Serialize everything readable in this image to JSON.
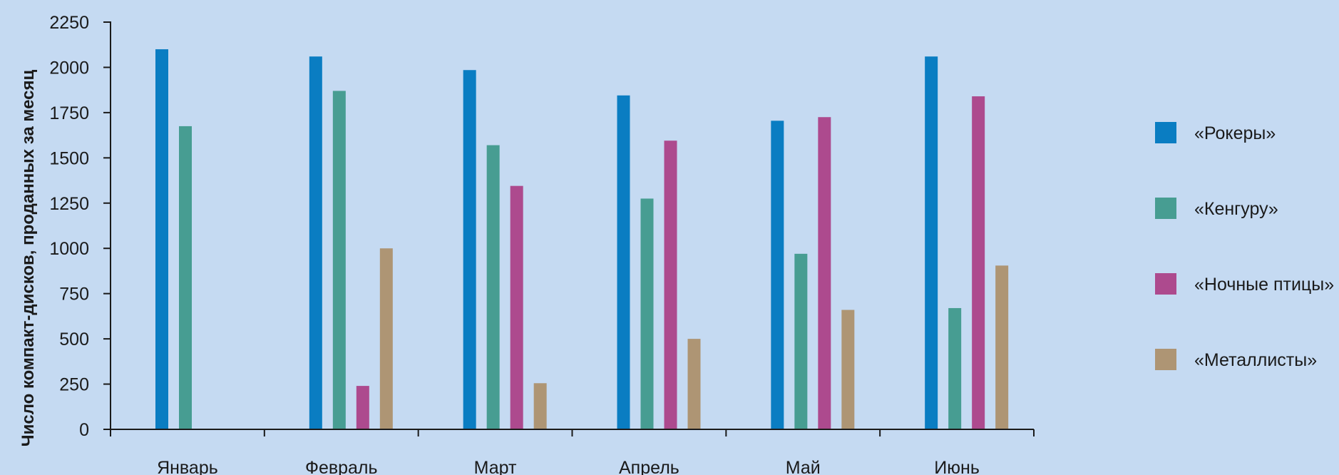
{
  "chart_data": {
    "type": "bar",
    "title": "",
    "xlabel": "",
    "ylabel": "Число компакт-дисков, проданных за месяц",
    "ylim": [
      0,
      2250
    ],
    "yticks": [
      0,
      250,
      500,
      750,
      1000,
      1250,
      1500,
      1750,
      2000,
      2250
    ],
    "grid": false,
    "legend_position": "right",
    "categories": [
      "Январь",
      "Февраль",
      "Март",
      "Апрель",
      "Май",
      "Июнь"
    ],
    "series": [
      {
        "name": "«Рокеры»",
        "color": "#0a7dc2",
        "values": [
          2100,
          2060,
          1985,
          1845,
          1705,
          2060
        ]
      },
      {
        "name": "«Кенгуру»",
        "color": "#479d92",
        "values": [
          1675,
          1870,
          1570,
          1275,
          970,
          670
        ]
      },
      {
        "name": "«Ночные птицы»",
        "color": "#ad4a8e",
        "values": [
          null,
          240,
          1345,
          1595,
          1725,
          1840
        ]
      },
      {
        "name": "«Металлисты»",
        "color": "#ae9574",
        "values": [
          null,
          1000,
          255,
          500,
          660,
          905
        ]
      }
    ]
  }
}
